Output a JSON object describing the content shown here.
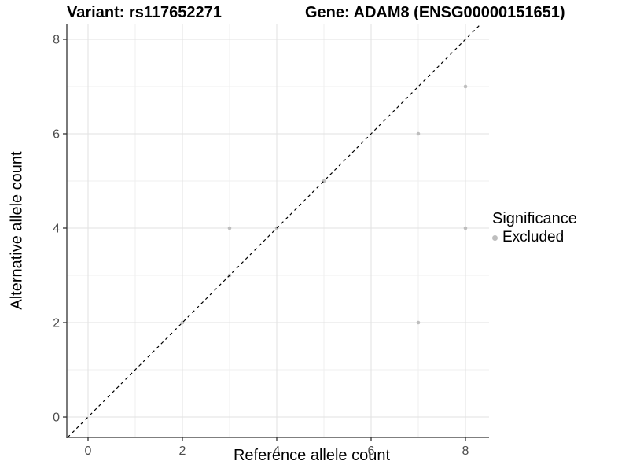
{
  "header": {
    "variant_title": "Variant: rs117652271",
    "gene_title": "Gene: ADAM8 (ENSG00000151651)"
  },
  "chart_data": {
    "type": "scatter",
    "xlabel": "Reference allele count",
    "ylabel": "Alternative allele count",
    "x_ticks": [
      0,
      2,
      4,
      6,
      8
    ],
    "y_ticks": [
      0,
      2,
      4,
      6,
      8
    ],
    "x_minor_ticks": [
      1,
      3,
      5,
      7
    ],
    "y_minor_ticks": [
      1,
      3,
      5,
      7
    ],
    "xlim": [
      -0.45,
      8.5
    ],
    "ylim": [
      -0.433,
      8.333
    ],
    "grid": true,
    "identity_line": {
      "style": "dashed",
      "color": "#000000",
      "start": -0.433,
      "end": 8.333
    },
    "series": [
      {
        "name": "Excluded",
        "color": "#bebebe",
        "points": [
          {
            "x": 2,
            "y": 2
          },
          {
            "x": 3,
            "y": 3
          },
          {
            "x": 4,
            "y": 4
          },
          {
            "x": 5,
            "y": 5
          },
          {
            "x": 3,
            "y": 4
          },
          {
            "x": 7,
            "y": 2
          },
          {
            "x": 7,
            "y": 6
          },
          {
            "x": 8,
            "y": 4
          },
          {
            "x": 8,
            "y": 7
          }
        ]
      }
    ],
    "legend": {
      "position": "right",
      "title": "Significance",
      "items": [
        {
          "label": "Excluded",
          "color": "#bebebe"
        }
      ]
    }
  },
  "colors": {
    "background": "#ffffff",
    "grid_major": "#e2e2e2",
    "grid_minor": "#efefef",
    "axis_line": "#333333",
    "tick_mark": "#333333",
    "tick_label": "#4d4d4d",
    "point": "#bebebe",
    "title_text": "#000000"
  }
}
